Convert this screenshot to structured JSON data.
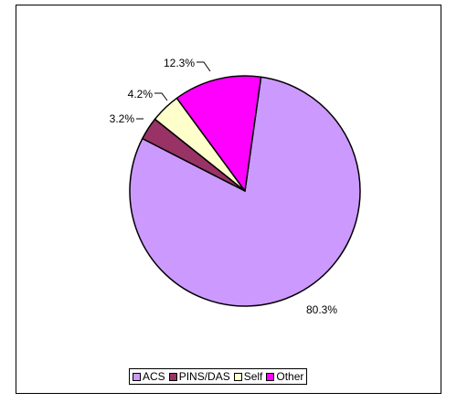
{
  "chart_data": {
    "type": "pie",
    "title": "",
    "slices": [
      {
        "name": "ACS",
        "value": 80.3,
        "label": "80.3%",
        "color": "#cc99ff"
      },
      {
        "name": "PINS/DAS",
        "value": 3.2,
        "label": "3.2%",
        "color": "#993366"
      },
      {
        "name": "Self",
        "value": 4.2,
        "label": "4.2%",
        "color": "#ffffcc"
      },
      {
        "name": "Other",
        "value": 12.3,
        "label": "12.3%",
        "color": "#ff00ff"
      }
    ],
    "legend_position": "bottom"
  }
}
